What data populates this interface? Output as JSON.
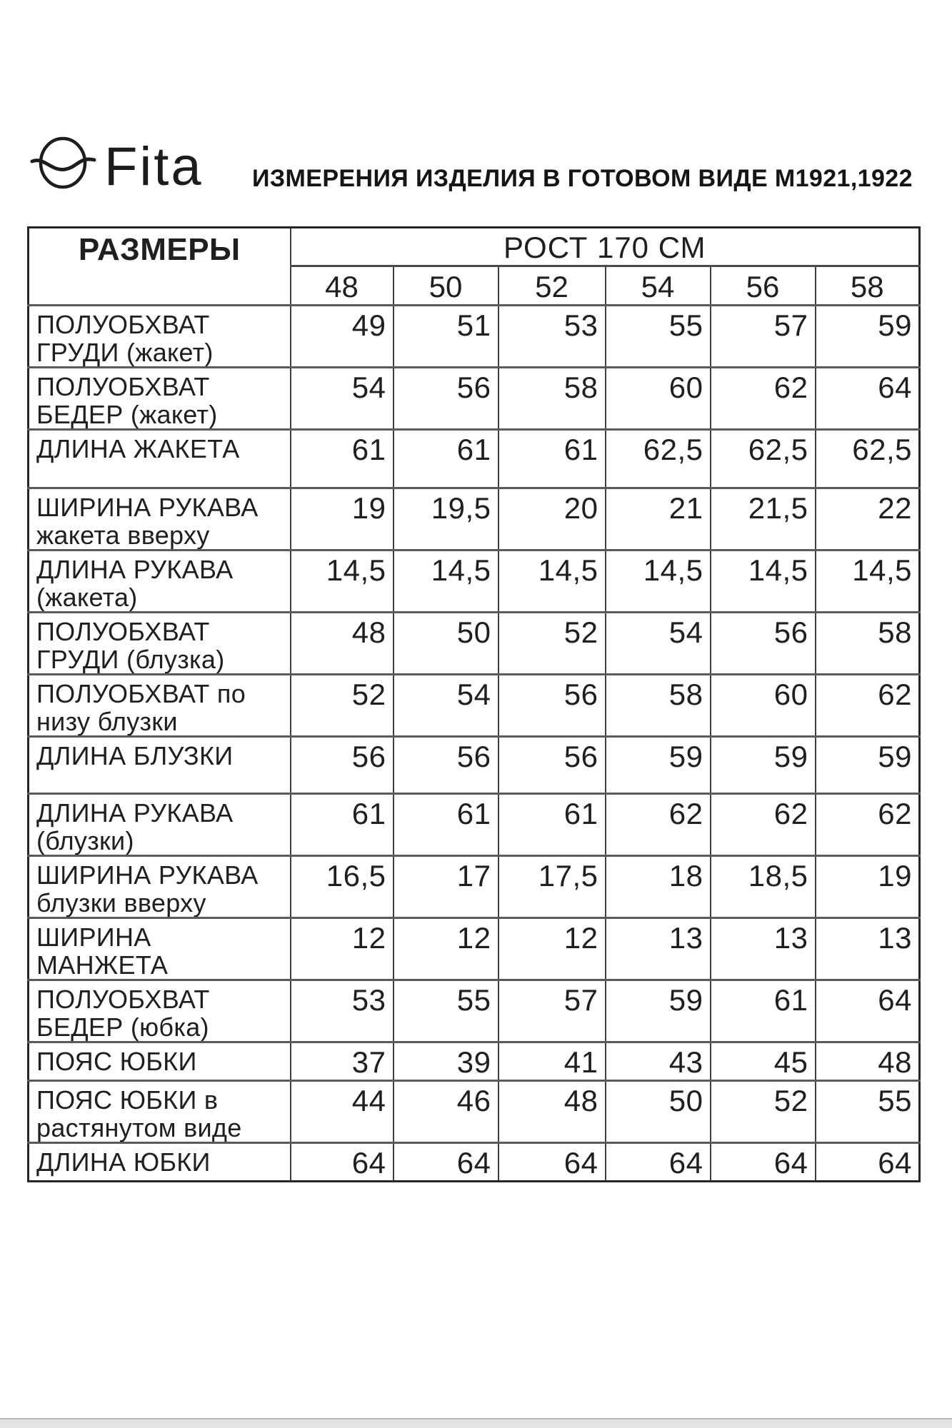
{
  "logo": {
    "brand": "Fita",
    "icon": "circle-wave-logo"
  },
  "title": "ИЗМЕРЕНИЯ ИЗДЕЛИЯ В ГОТОВОМ ВИДЕ М1921,1922",
  "table": {
    "corner_header": "РАЗМЕРЫ",
    "group_header": "РОСТ 170 СМ",
    "sizes": [
      "48",
      "50",
      "52",
      "54",
      "56",
      "58"
    ],
    "rows": [
      {
        "label": "ПОЛУОБХВАТ\nГРУДИ (жакет)",
        "values": [
          "49",
          "51",
          "53",
          "55",
          "57",
          "59"
        ]
      },
      {
        "label": "ПОЛУОБХВАТ\nБЕДЕР (жакет)",
        "values": [
          "54",
          "56",
          "58",
          "60",
          "62",
          "64"
        ]
      },
      {
        "label": "ДЛИНА ЖАКЕТА",
        "values": [
          "61",
          "61",
          "61",
          "62,5",
          "62,5",
          "62,5"
        ]
      },
      {
        "label": "ШИРИНА РУКАВА\nжакета вверху",
        "values": [
          "19",
          "19,5",
          "20",
          "21",
          "21,5",
          "22"
        ]
      },
      {
        "label": "ДЛИНА РУКАВА\n(жакета)",
        "values": [
          "14,5",
          "14,5",
          "14,5",
          "14,5",
          "14,5",
          "14,5"
        ]
      },
      {
        "label": "ПОЛУОБХВАТ\nГРУДИ (блузка)",
        "values": [
          "48",
          "50",
          "52",
          "54",
          "56",
          "58"
        ]
      },
      {
        "label": "ПОЛУОБХВАТ по\nнизу блузки",
        "values": [
          "52",
          "54",
          "56",
          "58",
          "60",
          "62"
        ]
      },
      {
        "label": "ДЛИНА БЛУЗКИ",
        "values": [
          "56",
          "56",
          "56",
          "59",
          "59",
          "59"
        ]
      },
      {
        "label": "ДЛИНА РУКАВА\n(блузки)",
        "values": [
          "61",
          "61",
          "61",
          "62",
          "62",
          "62"
        ]
      },
      {
        "label": "ШИРИНА РУКАВА\nблузки вверху",
        "values": [
          "16,5",
          "17",
          "17,5",
          "18",
          "18,5",
          "19"
        ]
      },
      {
        "label": "ШИРИНА МАНЖЕТА",
        "values": [
          "12",
          "12",
          "12",
          "13",
          "13",
          "13"
        ]
      },
      {
        "label": "ПОЛУОБХВАТ\nБЕДЕР (юбка)",
        "values": [
          "53",
          "55",
          "57",
          "59",
          "61",
          "64"
        ]
      },
      {
        "label": "ПОЯС ЮБКИ",
        "values": [
          "37",
          "39",
          "41",
          "43",
          "45",
          "48"
        ]
      },
      {
        "label": "ПОЯС ЮБКИ в\nрастянутом виде",
        "values": [
          "44",
          "46",
          "48",
          "50",
          "52",
          "55"
        ]
      },
      {
        "label": "ДЛИНА ЮБКИ",
        "values": [
          "64",
          "64",
          "64",
          "64",
          "64",
          "64"
        ]
      }
    ]
  },
  "colors": {
    "text": "#1f1f1f",
    "border": "#3e3e3e",
    "background": "#ffffff"
  }
}
